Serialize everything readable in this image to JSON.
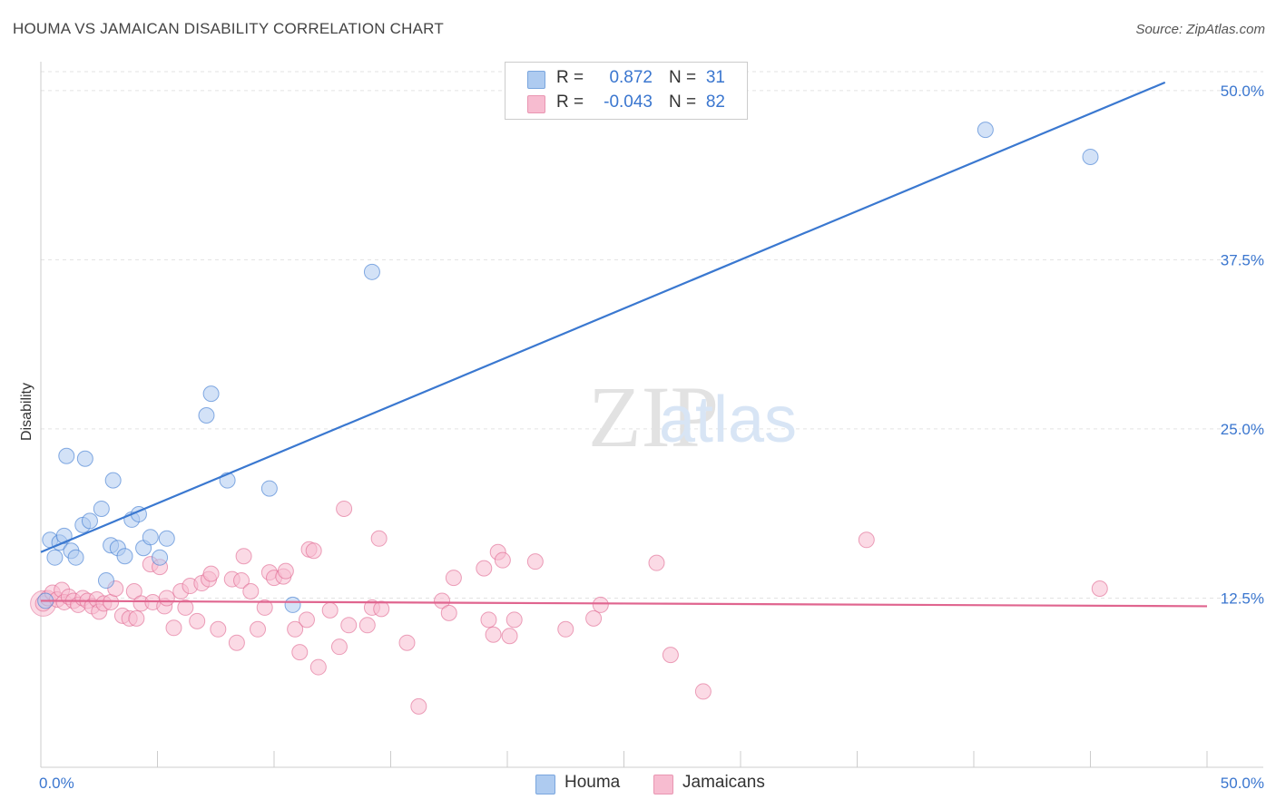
{
  "header": {
    "title": "HOUMA VS JAMAICAN DISABILITY CORRELATION CHART",
    "source": "Source: ZipAtlas.com"
  },
  "watermark": {
    "zip": "ZIP",
    "atlas": "atlas"
  },
  "legend": {
    "rows": [
      {
        "r_label": "R =",
        "r_value": "0.872",
        "n_label": "N =",
        "n_value": "31",
        "color": "#aecbf0"
      },
      {
        "r_label": "R =",
        "r_value": "-0.043",
        "n_label": "N =",
        "n_value": "82",
        "color": "#f7bcd0"
      }
    ]
  },
  "bottom_legend": [
    {
      "label": "Houma",
      "color": "#aecbf0"
    },
    {
      "label": "Jamaicans",
      "color": "#f7bcd0"
    }
  ],
  "chart_data": {
    "type": "scatter",
    "title": "HOUMA VS JAMAICAN DISABILITY CORRELATION CHART",
    "xlabel": "",
    "ylabel": "Disability",
    "xlim": [
      0,
      50
    ],
    "ylim": [
      0,
      52
    ],
    "x_tick_labels": [
      "0.0%",
      "50.0%"
    ],
    "y_ticks": [
      12.5,
      25.0,
      37.5,
      50.0
    ],
    "y_tick_labels": [
      "12.5%",
      "25.0%",
      "37.5%",
      "50.0%"
    ],
    "grid": "horizontal dashed",
    "legend_position": "top-center",
    "series": [
      {
        "name": "Houma",
        "color": "#3a78d0",
        "fill": "#aecbf0",
        "trend": {
          "x": [
            0,
            48.2
          ],
          "y": [
            15.9,
            50.6
          ]
        },
        "points": [
          [
            0.2,
            12.3
          ],
          [
            0.4,
            16.8
          ],
          [
            0.6,
            15.5
          ],
          [
            0.8,
            16.6
          ],
          [
            1.0,
            17.1
          ],
          [
            1.1,
            23.0
          ],
          [
            1.3,
            16.0
          ],
          [
            1.5,
            15.5
          ],
          [
            1.8,
            17.9
          ],
          [
            1.9,
            22.8
          ],
          [
            2.1,
            18.2
          ],
          [
            2.6,
            19.1
          ],
          [
            2.8,
            13.8
          ],
          [
            3.0,
            16.4
          ],
          [
            3.1,
            21.2
          ],
          [
            3.3,
            16.2
          ],
          [
            3.6,
            15.6
          ],
          [
            3.9,
            18.3
          ],
          [
            4.2,
            18.7
          ],
          [
            4.4,
            16.2
          ],
          [
            4.7,
            17.0
          ],
          [
            5.1,
            15.5
          ],
          [
            5.4,
            16.9
          ],
          [
            7.1,
            26.0
          ],
          [
            7.3,
            27.6
          ],
          [
            8.0,
            21.2
          ],
          [
            9.8,
            20.6
          ],
          [
            10.8,
            12.0
          ],
          [
            14.2,
            36.6
          ],
          [
            40.5,
            47.1
          ],
          [
            45.0,
            45.1
          ]
        ]
      },
      {
        "name": "Jamaicans",
        "color": "#e0658f",
        "fill": "#f7bcd0",
        "trend": {
          "x": [
            0,
            50
          ],
          "y": [
            12.3,
            11.9
          ]
        },
        "points": [
          [
            0.1,
            12.1
          ],
          [
            0.3,
            12.5
          ],
          [
            0.5,
            12.9
          ],
          [
            0.7,
            12.4
          ],
          [
            0.9,
            13.1
          ],
          [
            1.0,
            12.2
          ],
          [
            1.2,
            12.6
          ],
          [
            1.4,
            12.3
          ],
          [
            1.6,
            12.0
          ],
          [
            1.8,
            12.5
          ],
          [
            2.0,
            12.3
          ],
          [
            2.2,
            11.9
          ],
          [
            2.4,
            12.4
          ],
          [
            2.5,
            11.5
          ],
          [
            2.7,
            12.1
          ],
          [
            3.0,
            12.2
          ],
          [
            3.2,
            13.2
          ],
          [
            3.5,
            11.2
          ],
          [
            3.8,
            11.0
          ],
          [
            4.0,
            13.0
          ],
          [
            4.1,
            11.0
          ],
          [
            4.3,
            12.1
          ],
          [
            4.7,
            15.0
          ],
          [
            4.8,
            12.2
          ],
          [
            5.1,
            14.8
          ],
          [
            5.3,
            11.9
          ],
          [
            5.4,
            12.5
          ],
          [
            5.7,
            10.3
          ],
          [
            6.0,
            13.0
          ],
          [
            6.2,
            11.8
          ],
          [
            6.4,
            13.4
          ],
          [
            6.7,
            10.8
          ],
          [
            6.9,
            13.6
          ],
          [
            7.2,
            13.9
          ],
          [
            7.3,
            14.3
          ],
          [
            7.6,
            10.2
          ],
          [
            8.2,
            13.9
          ],
          [
            8.4,
            9.2
          ],
          [
            8.6,
            13.8
          ],
          [
            8.7,
            15.6
          ],
          [
            9.0,
            13.0
          ],
          [
            9.3,
            10.2
          ],
          [
            9.6,
            11.8
          ],
          [
            9.8,
            14.4
          ],
          [
            10.0,
            14.0
          ],
          [
            10.4,
            14.1
          ],
          [
            10.5,
            14.5
          ],
          [
            10.9,
            10.2
          ],
          [
            11.1,
            8.5
          ],
          [
            11.4,
            10.9
          ],
          [
            11.5,
            16.1
          ],
          [
            11.7,
            16.0
          ],
          [
            11.9,
            7.4
          ],
          [
            12.4,
            11.6
          ],
          [
            12.8,
            8.9
          ],
          [
            13.0,
            19.1
          ],
          [
            13.2,
            10.5
          ],
          [
            14.0,
            10.5
          ],
          [
            14.2,
            11.8
          ],
          [
            14.5,
            16.9
          ],
          [
            14.6,
            11.7
          ],
          [
            15.7,
            9.2
          ],
          [
            16.2,
            4.5
          ],
          [
            17.2,
            12.3
          ],
          [
            17.5,
            11.4
          ],
          [
            17.7,
            14.0
          ],
          [
            19.0,
            14.7
          ],
          [
            19.2,
            10.9
          ],
          [
            19.4,
            9.8
          ],
          [
            19.6,
            15.9
          ],
          [
            19.8,
            15.3
          ],
          [
            20.1,
            9.7
          ],
          [
            20.3,
            10.9
          ],
          [
            21.2,
            15.2
          ],
          [
            22.5,
            10.2
          ],
          [
            23.7,
            11.0
          ],
          [
            24.0,
            12.0
          ],
          [
            26.4,
            15.1
          ],
          [
            27.0,
            8.3
          ],
          [
            28.4,
            5.6
          ],
          [
            35.4,
            16.8
          ],
          [
            45.4,
            13.2
          ]
        ]
      }
    ]
  }
}
